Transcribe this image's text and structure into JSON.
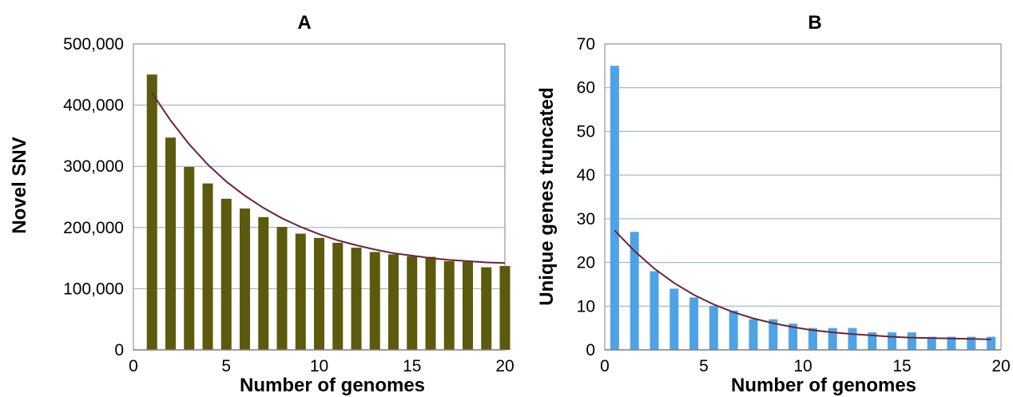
{
  "chart_data": [
    {
      "type": "bar",
      "title": "A",
      "xlabel": "Number of genomes",
      "ylabel": "Novel SNV",
      "xlim": [
        0,
        20
      ],
      "ylim": [
        0,
        500000
      ],
      "xticks": [
        "0",
        "5",
        "10",
        "15",
        "20"
      ],
      "yticks": [
        "0",
        "100,000",
        "200,000",
        "300,000",
        "400,000",
        "500,000"
      ],
      "bar_color": "#5c5a0c",
      "trend_color": "#6a2438",
      "grid": true,
      "x": [
        1,
        2,
        3,
        4,
        5,
        6,
        7,
        8,
        9,
        10,
        11,
        12,
        13,
        14,
        15,
        16,
        17,
        18,
        19,
        20
      ],
      "values": [
        450000,
        347000,
        299000,
        272000,
        247000,
        231000,
        217000,
        201000,
        190000,
        183000,
        175000,
        167000,
        160000,
        156000,
        153000,
        152000,
        145000,
        144000,
        135000,
        137000
      ],
      "trend": {
        "x": [
          1,
          2,
          3,
          4,
          5,
          6,
          7,
          8,
          9,
          10,
          11,
          12,
          13,
          14,
          15,
          16,
          17,
          18,
          19,
          20
        ],
        "y": [
          420000,
          375000,
          336000,
          303000,
          275000,
          252000,
          232000,
          215000,
          201000,
          189000,
          179000,
          171000,
          164000,
          158000,
          154000,
          150000,
          147000,
          145000,
          143000,
          142000
        ]
      }
    },
    {
      "type": "bar",
      "title": "B",
      "xlabel": "Number of genomes",
      "ylabel": "Unique genes truncated",
      "xlim": [
        0,
        20
      ],
      "ylim": [
        0,
        70
      ],
      "xticks": [
        "0",
        "5",
        "10",
        "15",
        "20"
      ],
      "yticks": [
        "0",
        "10",
        "20",
        "30",
        "40",
        "50",
        "60",
        "70"
      ],
      "bar_color": "#4ea3e6",
      "trend_color": "#6a2438",
      "grid": true,
      "x": [
        0.5,
        1.5,
        2.5,
        3.5,
        4.5,
        5.5,
        6.5,
        7.5,
        8.5,
        9.5,
        10.5,
        11.5,
        12.5,
        13.5,
        14.5,
        15.5,
        16.5,
        17.5,
        18.5,
        19.5
      ],
      "values": [
        65,
        27,
        18,
        14,
        12,
        10,
        9,
        7,
        7,
        6,
        5,
        5,
        5,
        4,
        4,
        4,
        3,
        3,
        3,
        3
      ],
      "trend": {
        "x": [
          0.5,
          1.5,
          2.5,
          3.5,
          4.5,
          5.5,
          6.5,
          7.5,
          8.5,
          9.5,
          10.5,
          11.5,
          12.5,
          13.5,
          14.5,
          15.5,
          16.5,
          17.5,
          18.5,
          19.5
        ],
        "y": [
          27.3,
          22.6,
          18.6,
          15.3,
          12.6,
          10.4,
          8.6,
          7.2,
          6.1,
          5.2,
          4.5,
          4.0,
          3.6,
          3.3,
          3.0,
          2.8,
          2.7,
          2.6,
          2.5,
          2.4
        ]
      }
    }
  ]
}
